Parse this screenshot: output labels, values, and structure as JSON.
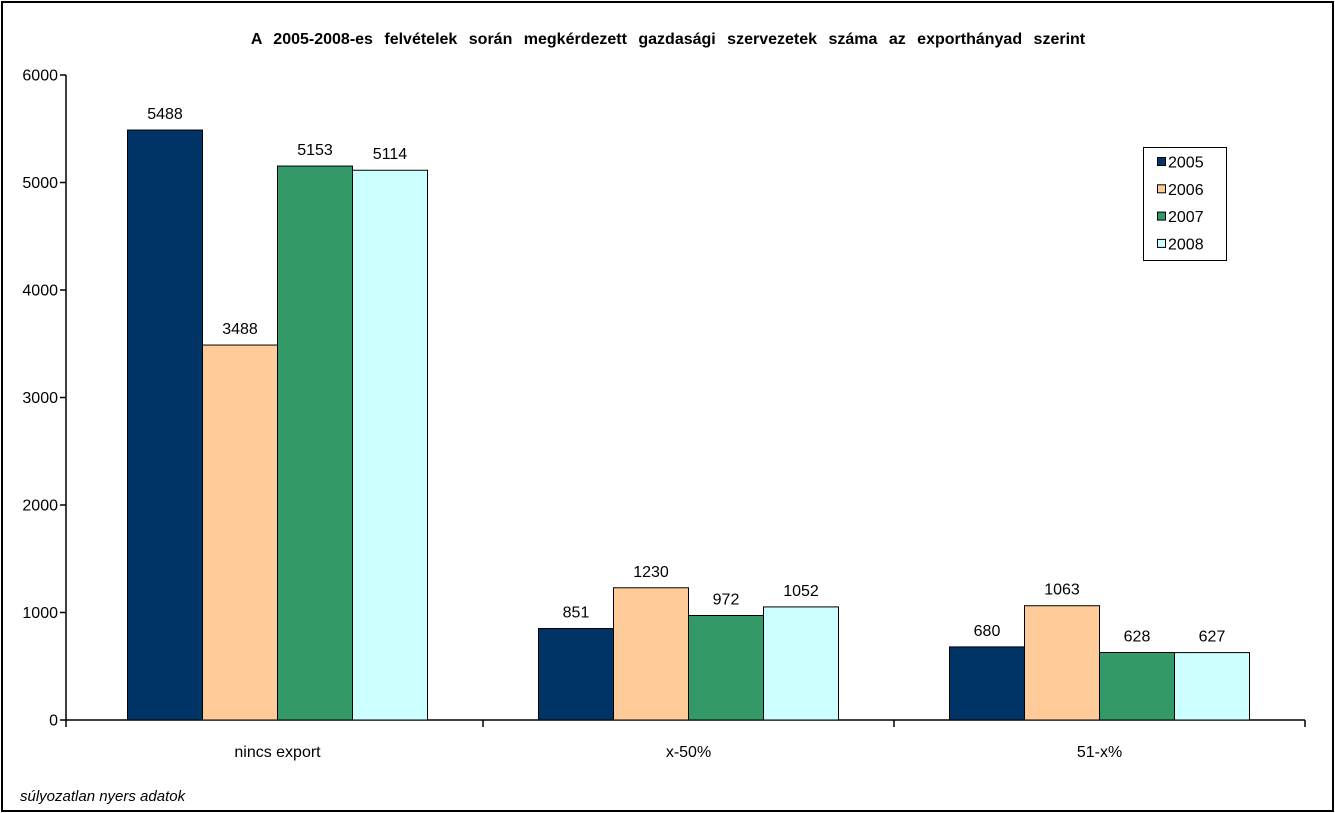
{
  "chart_data": {
    "type": "bar",
    "title": "A 2005-2008-es felvételek során megkérdezett gazdasági szervezetek száma az exporthányad szerint",
    "categories": [
      "nincs export",
      "x-50%",
      "51-x%"
    ],
    "series": [
      {
        "name": "2005",
        "color": "#003366",
        "values": [
          5488,
          851,
          680
        ]
      },
      {
        "name": "2006",
        "color": "#FFCC99",
        "values": [
          3488,
          1230,
          1063
        ]
      },
      {
        "name": "2007",
        "color": "#339966",
        "values": [
          5153,
          972,
          628
        ]
      },
      {
        "name": "2008",
        "color": "#CCFFFF",
        "values": [
          5114,
          1052,
          627
        ]
      }
    ],
    "ylim": [
      0,
      6000
    ],
    "yticks": [
      0,
      1000,
      2000,
      3000,
      4000,
      5000,
      6000
    ],
    "grid": false,
    "legend": "top-right"
  },
  "note": "súlyozatlan nyers adatok"
}
